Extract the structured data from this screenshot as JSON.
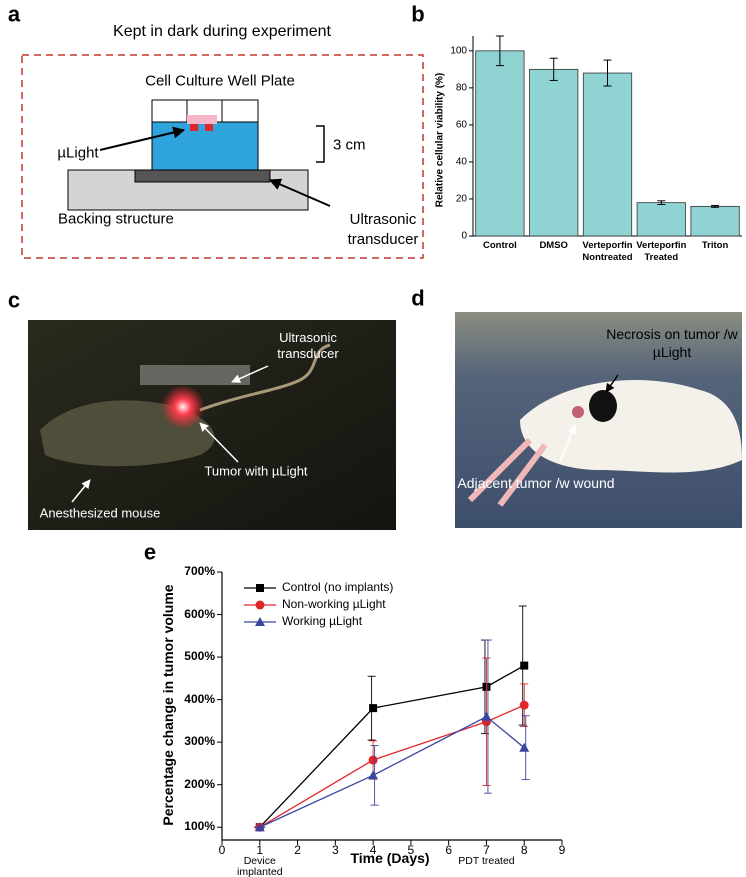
{
  "panel_labels": [
    "a",
    "b",
    "c",
    "d",
    "e"
  ],
  "diagram": {
    "title": "Kept in dark during experiment",
    "well_plate": "Cell Culture Well Plate",
    "device": "µLight",
    "scale": "3 cm",
    "backing": "Backing structure",
    "transducer": "Ultrasonic transducer"
  },
  "photo_c": {
    "transducer": "Ultrasonic transducer",
    "tumor": "Tumor with µLight",
    "mouse": "Anesthesized mouse"
  },
  "photo_d": {
    "necrosis": "Necrosis on tumor /w µLight",
    "adjacent": "Adjacent tumor /w wound"
  },
  "chart_data": [
    {
      "type": "bar",
      "ylabel": "Relative cellular viability (%)",
      "categories": [
        "Control",
        "DMSO",
        "Verteporfin Nontreated",
        "Verteporfin Treated",
        "Triton"
      ],
      "values": [
        100,
        90,
        88,
        18,
        16
      ],
      "errors": [
        8,
        6,
        7,
        1,
        0.5
      ],
      "color": "#8fd3d3",
      "ylim": [
        0,
        108
      ],
      "yticks": [
        0,
        20,
        40,
        60,
        80,
        100
      ]
    },
    {
      "type": "line",
      "xlabel": "Time (Days)",
      "ylabel": "Percentage change in tumor volume",
      "x": [
        1,
        4,
        7,
        8
      ],
      "series": [
        {
          "name": "Control (no implants)",
          "color": "#000000",
          "marker": "square",
          "values": [
            100,
            380,
            430,
            480
          ],
          "errors": [
            0,
            75,
            110,
            140
          ]
        },
        {
          "name": "Non-working µLight",
          "color": "#e0262b",
          "marker": "circle",
          "values": [
            100,
            258,
            348,
            387
          ],
          "errors": [
            0,
            45,
            150,
            50
          ]
        },
        {
          "name": "Working µLight",
          "color": "#3a45a0",
          "marker": "triangle",
          "values": [
            100,
            222,
            360,
            287
          ],
          "errors": [
            0,
            70,
            180,
            75
          ]
        }
      ],
      "xlim": [
        0,
        9
      ],
      "xticks": [
        0,
        1,
        2,
        3,
        4,
        5,
        6,
        7,
        8,
        9
      ],
      "ylim": [
        70,
        700
      ],
      "yticks": [
        {
          "value": 100,
          "label": "100%"
        },
        {
          "value": 200,
          "label": "200%"
        },
        {
          "value": 300,
          "label": "300%"
        },
        {
          "value": 400,
          "label": "400%"
        },
        {
          "value": 500,
          "label": "500%"
        },
        {
          "value": 600,
          "label": "600%"
        },
        {
          "value": 700,
          "label": "700%"
        }
      ],
      "annotations": [
        {
          "x": 1,
          "text": "Device implanted"
        },
        {
          "x": 7,
          "text": "PDT treated"
        }
      ]
    }
  ]
}
